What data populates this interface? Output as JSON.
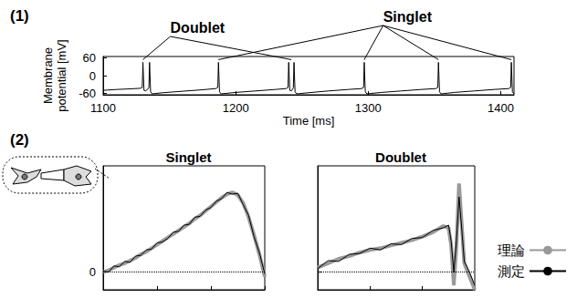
{
  "chart_data": [
    {
      "type": "line",
      "label": "(1)",
      "xlabel": "Time [ms]",
      "ylabel": "Membrane\npotential [mV]",
      "x": [
        1100,
        1110,
        1120,
        1128,
        1129.5,
        1130,
        1130.8,
        1132,
        1134.5,
        1135,
        1135.8,
        1137,
        1145,
        1160,
        1175,
        1185,
        1186.5,
        1187,
        1187.8,
        1189,
        1200,
        1215,
        1230,
        1238,
        1239.5,
        1240,
        1240.8,
        1242,
        1243.5,
        1244,
        1244.8,
        1246,
        1255,
        1270,
        1285,
        1295,
        1296.5,
        1297,
        1297.8,
        1299,
        1310,
        1325,
        1340,
        1351,
        1352.5,
        1353,
        1353.8,
        1355,
        1365,
        1380,
        1395,
        1406,
        1407.5,
        1408,
        1408.8,
        1410
      ],
      "values": [
        -50,
        -47,
        -45,
        -43,
        -40,
        45,
        -50,
        -52,
        -42,
        45,
        -55,
        -62,
        -58,
        -53,
        -48,
        -44,
        -40,
        45,
        -55,
        -62,
        -57,
        -52,
        -47,
        -44,
        -40,
        45,
        -50,
        -52,
        -42,
        45,
        -55,
        -62,
        -58,
        -52,
        -47,
        -44,
        -40,
        45,
        -55,
        -62,
        -57,
        -52,
        -47,
        -44,
        -40,
        45,
        -55,
        -62,
        -57,
        -52,
        -47,
        -44,
        -40,
        45,
        -55,
        -62
      ],
      "color": "#000000",
      "line_style": "solid",
      "marker": "none",
      "xlim": [
        1100,
        1410
      ],
      "xticks": [
        1100,
        1200,
        1300,
        1400
      ],
      "ylim": [
        -65,
        65
      ],
      "yticks": [
        -60,
        0,
        60
      ],
      "annotations": [
        {
          "text": "Doublet",
          "x": [
            1130,
            1242
          ]
        },
        {
          "text": "Singlet",
          "x": [
            1187,
            1297,
            1353,
            1408
          ]
        }
      ]
    },
    {
      "type": "line",
      "label": "(2)",
      "title": "Singlet",
      "x": [
        0,
        0.1,
        0.2,
        0.3,
        0.4,
        0.5,
        0.6,
        0.7,
        0.8,
        0.9,
        1.0,
        1.1,
        1.2,
        1.3,
        1.4,
        1.5,
        1.6,
        1.7,
        1.8,
        1.9,
        2.0,
        2.1,
        2.2,
        2.3,
        2.4,
        2.5,
        2.6,
        2.7,
        2.8,
        2.9,
        3.0
      ],
      "series": [
        {
          "name": "理論",
          "color": "#999999",
          "line_style": "solid",
          "values": [
            0,
            0.02,
            0.05,
            0.08,
            0.1,
            0.13,
            0.16,
            0.2,
            0.23,
            0.27,
            0.31,
            0.35,
            0.39,
            0.43,
            0.47,
            0.51,
            0.55,
            0.6,
            0.64,
            0.69,
            0.74,
            0.79,
            0.84,
            0.88,
            0.9,
            0.87,
            0.78,
            0.62,
            0.42,
            0.2,
            -0.05
          ]
        },
        {
          "name": "測定",
          "color": "#000000",
          "line_style": "solid",
          "values": [
            0.01,
            0.0,
            0.07,
            0.06,
            0.12,
            0.11,
            0.18,
            0.19,
            0.25,
            0.26,
            0.33,
            0.34,
            0.38,
            0.45,
            0.46,
            0.53,
            0.54,
            0.62,
            0.63,
            0.7,
            0.73,
            0.8,
            0.83,
            0.9,
            0.88,
            0.89,
            0.76,
            0.64,
            0.4,
            0.22,
            -0.02
          ]
        }
      ],
      "xlim": [
        0,
        3
      ],
      "xticks": [
        0,
        1,
        2,
        3
      ],
      "ylim": [
        -0.2,
        1.2
      ],
      "yticks": [
        0
      ],
      "tick_labels": "y",
      "grid": true
    },
    {
      "type": "line",
      "title": "Doublet",
      "x": [
        0,
        0.2,
        0.4,
        0.6,
        0.8,
        1.0,
        1.2,
        1.4,
        1.6,
        1.8,
        2.0,
        2.2,
        2.4,
        2.5,
        2.55,
        2.6,
        2.65,
        2.7,
        2.75,
        2.8,
        2.9,
        3.0
      ],
      "series": [
        {
          "name": "理論",
          "color": "#999999",
          "line_style": "solid",
          "values": [
            0.05,
            0.1,
            0.15,
            0.18,
            0.22,
            0.25,
            0.27,
            0.3,
            0.33,
            0.36,
            0.4,
            0.45,
            0.52,
            0.5,
            0.3,
            -0.15,
            0.3,
            1.0,
            0.55,
            0.1,
            -0.05,
            -0.2
          ]
        },
        {
          "name": "測定",
          "color": "#000000",
          "line_style": "solid",
          "values": [
            0.04,
            0.13,
            0.12,
            0.2,
            0.21,
            0.27,
            0.25,
            0.32,
            0.31,
            0.38,
            0.39,
            0.47,
            0.5,
            0.53,
            0.35,
            0.0,
            0.35,
            0.85,
            0.5,
            0.12,
            0.0,
            -0.15
          ]
        }
      ],
      "xlim": [
        0,
        3
      ],
      "xticks": [
        0,
        1,
        2,
        3
      ],
      "ylim": [
        -0.2,
        1.2
      ],
      "yticks": [
        0
      ],
      "tick_labels": false,
      "grid": true,
      "legend": "right"
    }
  ]
}
